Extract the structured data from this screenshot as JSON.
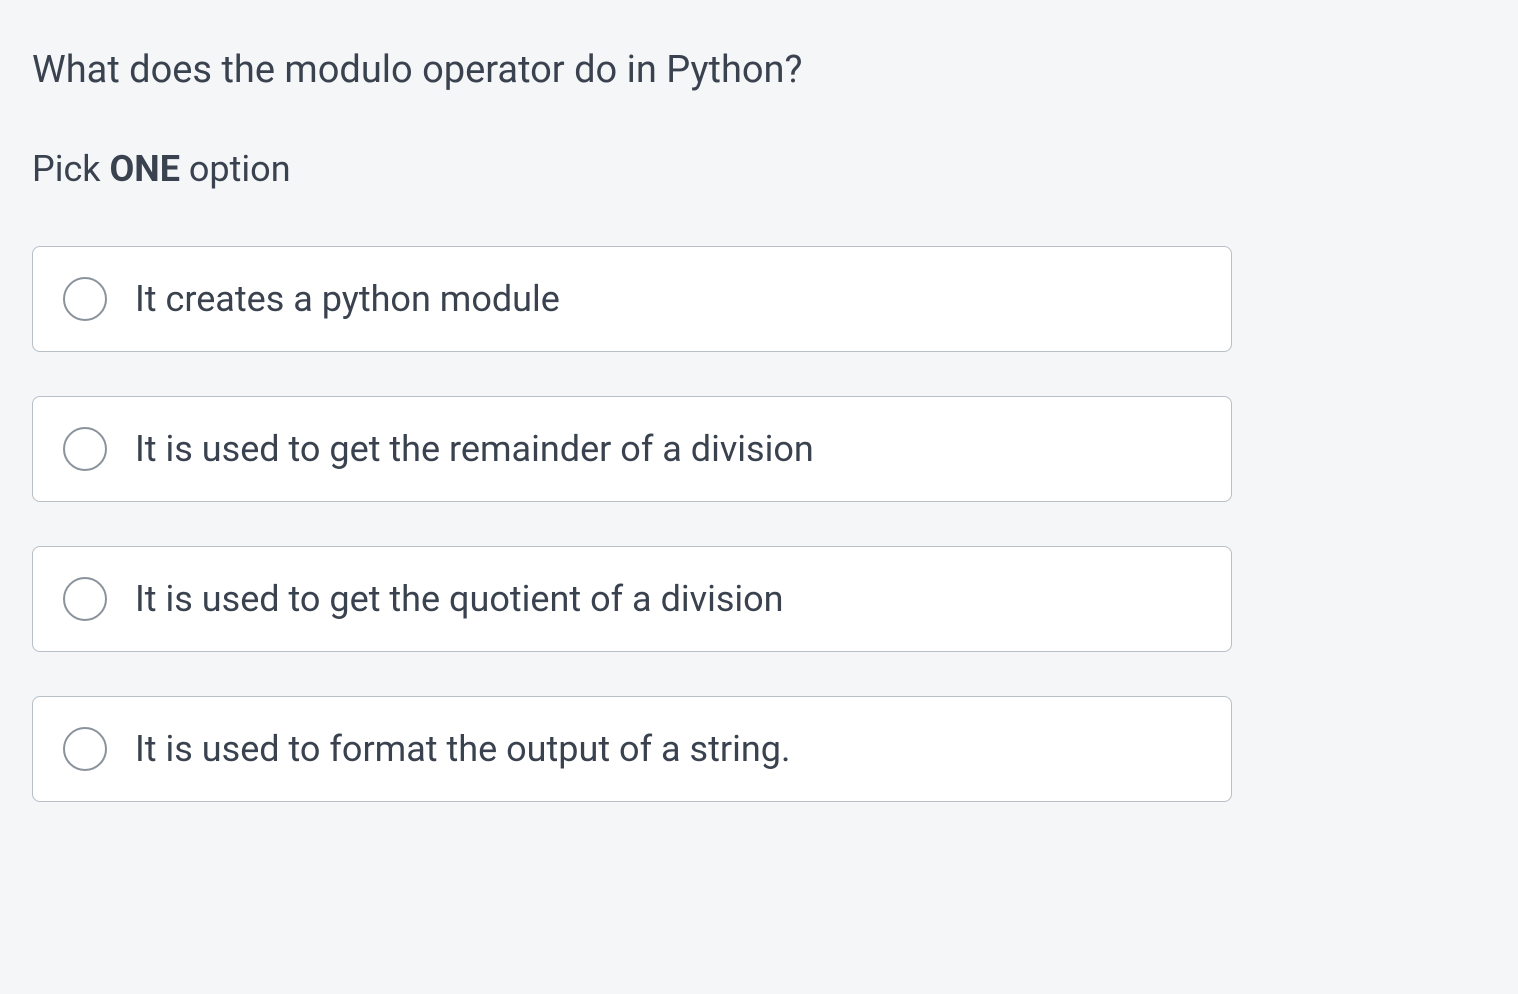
{
  "question": {
    "text": "What does the modulo operator do in Python?"
  },
  "instruction": {
    "prefix": "Pick ",
    "bold": "ONE",
    "suffix": " option"
  },
  "options": [
    {
      "label": "It creates a python module"
    },
    {
      "label": "It is used to get the remainder of a division"
    },
    {
      "label": "It is used to get the quotient of a division"
    },
    {
      "label": "It is used to format the output of a string."
    }
  ],
  "colors": {
    "background": "#f4f6f8",
    "option_background": "#ffffff",
    "option_border": "#b8bfc7",
    "radio_border": "#8a929b",
    "text": "#39424e"
  }
}
